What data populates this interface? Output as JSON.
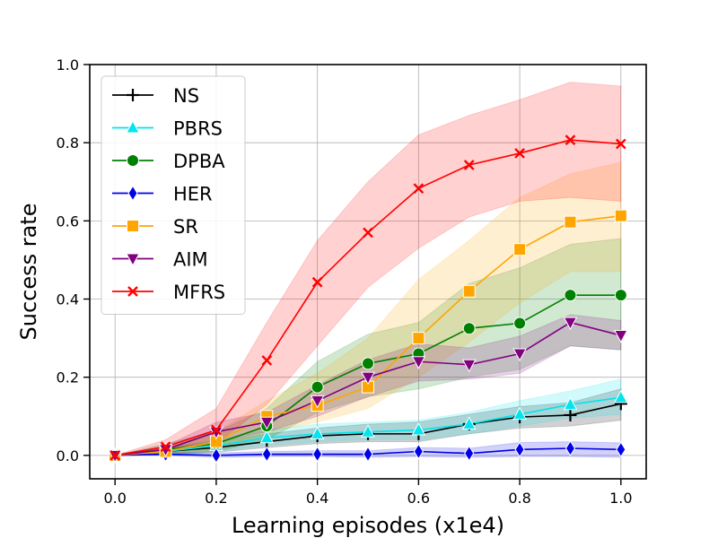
{
  "chart_data": {
    "type": "line",
    "xlabel": "Learning episodes (x1e4)",
    "ylabel": "Success rate",
    "xlim": [
      -0.05,
      1.05
    ],
    "ylim": [
      -0.06,
      1.0
    ],
    "xticks": [
      0.0,
      0.2,
      0.4,
      0.6,
      0.8,
      1.0
    ],
    "yticks": [
      0.0,
      0.2,
      0.4,
      0.6,
      0.8,
      1.0
    ],
    "xtick_labels": [
      "0.0",
      "0.2",
      "0.4",
      "0.6",
      "0.8",
      "1.0"
    ],
    "ytick_labels": [
      "0.0",
      "0.2",
      "0.4",
      "0.6",
      "0.8",
      "1.0"
    ],
    "grid": true,
    "legend_position": "top-left",
    "x": [
      0.0,
      0.1,
      0.2,
      0.3,
      0.4,
      0.5,
      0.6,
      0.7,
      0.8,
      0.9,
      1.0
    ],
    "series": [
      {
        "name": "NS",
        "color": "#000000",
        "marker": "plus",
        "values": [
          0.0,
          0.01,
          0.02,
          0.035,
          0.05,
          0.055,
          0.055,
          0.08,
          0.098,
          0.103,
          0.132
        ],
        "lower": [
          0.0,
          0.003,
          0.008,
          0.02,
          0.03,
          0.035,
          0.035,
          0.055,
          0.07,
          0.075,
          0.09
        ],
        "upper": [
          0.0,
          0.02,
          0.035,
          0.055,
          0.07,
          0.08,
          0.085,
          0.105,
          0.125,
          0.135,
          0.17
        ]
      },
      {
        "name": "PBRS",
        "color": "#00e5ee",
        "marker": "triangle-up",
        "values": [
          0.0,
          0.01,
          0.025,
          0.045,
          0.055,
          0.06,
          0.065,
          0.08,
          0.105,
          0.13,
          0.148
        ],
        "lower": [
          0.0,
          0.003,
          0.01,
          0.025,
          0.035,
          0.04,
          0.04,
          0.055,
          0.075,
          0.095,
          0.105
        ],
        "upper": [
          0.0,
          0.02,
          0.04,
          0.065,
          0.08,
          0.085,
          0.09,
          0.11,
          0.14,
          0.165,
          0.195
        ]
      },
      {
        "name": "DPBA",
        "color": "#008000",
        "marker": "circle",
        "values": [
          0.0,
          0.015,
          0.03,
          0.075,
          0.175,
          0.235,
          0.26,
          0.325,
          0.338,
          0.41,
          0.41
        ],
        "lower": [
          0.0,
          0.005,
          0.01,
          0.04,
          0.11,
          0.15,
          0.17,
          0.2,
          0.22,
          0.28,
          0.27
        ],
        "upper": [
          0.0,
          0.03,
          0.06,
          0.12,
          0.24,
          0.31,
          0.34,
          0.44,
          0.48,
          0.54,
          0.555
        ]
      },
      {
        "name": "HER",
        "color": "#0000e6",
        "marker": "diamond",
        "values": [
          0.0,
          0.003,
          0.0,
          0.003,
          0.003,
          0.003,
          0.01,
          0.005,
          0.015,
          0.018,
          0.015
        ],
        "lower": [
          0.0,
          0.0,
          -0.005,
          -0.003,
          -0.003,
          -0.005,
          -0.003,
          -0.005,
          -0.003,
          -0.003,
          -0.005
        ],
        "upper": [
          0.0,
          0.008,
          0.006,
          0.01,
          0.012,
          0.012,
          0.02,
          0.018,
          0.033,
          0.035,
          0.032
        ]
      },
      {
        "name": "SR",
        "color": "#ffa500",
        "marker": "square",
        "values": [
          0.0,
          0.01,
          0.035,
          0.1,
          0.128,
          0.175,
          0.3,
          0.42,
          0.527,
          0.597,
          0.613
        ],
        "lower": [
          0.0,
          0.003,
          0.015,
          0.06,
          0.085,
          0.12,
          0.2,
          0.29,
          0.39,
          0.47,
          0.47
        ],
        "upper": [
          0.0,
          0.02,
          0.06,
          0.14,
          0.21,
          0.3,
          0.45,
          0.55,
          0.66,
          0.72,
          0.75
        ]
      },
      {
        "name": "AIM",
        "color": "#800080",
        "marker": "triangle-down",
        "values": [
          0.0,
          0.015,
          0.06,
          0.085,
          0.14,
          0.2,
          0.24,
          0.232,
          0.26,
          0.34,
          0.307
        ],
        "lower": [
          0.0,
          0.008,
          0.035,
          0.06,
          0.1,
          0.15,
          0.19,
          0.195,
          0.21,
          0.28,
          0.27
        ],
        "upper": [
          0.0,
          0.025,
          0.085,
          0.11,
          0.18,
          0.245,
          0.285,
          0.275,
          0.305,
          0.36,
          0.345
        ]
      },
      {
        "name": "MFRS",
        "color": "#ff0000",
        "marker": "x",
        "values": [
          0.0,
          0.022,
          0.065,
          0.243,
          0.443,
          0.57,
          0.683,
          0.743,
          0.773,
          0.807,
          0.797
        ],
        "lower": [
          0.0,
          0.01,
          0.03,
          0.13,
          0.28,
          0.43,
          0.53,
          0.61,
          0.65,
          0.66,
          0.65
        ],
        "upper": [
          0.0,
          0.04,
          0.12,
          0.34,
          0.55,
          0.7,
          0.82,
          0.87,
          0.91,
          0.955,
          0.945
        ]
      }
    ]
  }
}
